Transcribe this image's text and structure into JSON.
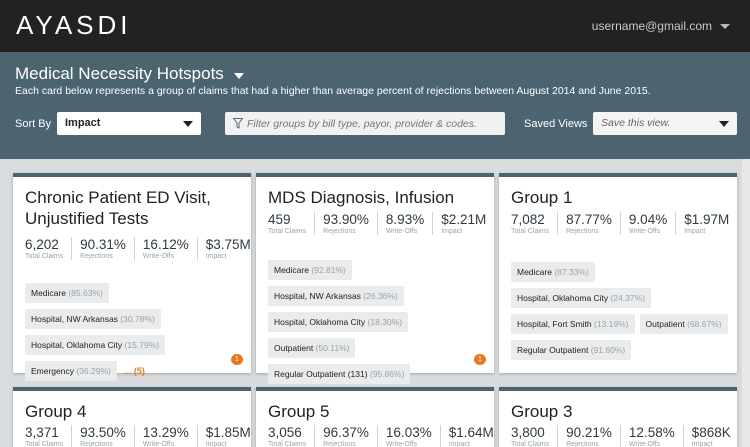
{
  "app": {
    "logo": "AYASDI",
    "user": "username@gmail.com"
  },
  "header": {
    "title": "Medical Necessity Hotspots",
    "subtitle": "Each card below represents a group of claims that had a higher than average percent of rejections between August 2014 and June 2015.",
    "sort_label": "Sort By",
    "sort_value": "Impact",
    "filter_placeholder": "Filter groups by bill type, payor, provider & codes.",
    "saved_label": "Saved Views",
    "saved_placeholder": "Save this view."
  },
  "stat_labels": {
    "claims": "Total Claims",
    "rejections": "Rejections",
    "writeoffs": "Write-Offs",
    "impact": "Impact"
  },
  "cards": [
    {
      "title": "Chronic Patient ED Visit, Unjustified Tests",
      "claims": "6,202",
      "rejections": "90.31%",
      "writeoffs": "16.12%",
      "impact": "$3.75M",
      "tags": [
        {
          "name": "Medicare",
          "pct": "(85.63%)"
        },
        {
          "name": "Hospital, NW Arkansas",
          "pct": "(30.78%)"
        },
        {
          "name": "Hospital, Oklahoma City",
          "pct": "(15.79%)"
        },
        {
          "name": "Emergency",
          "pct": "(36.29%)"
        }
      ],
      "more": "... (5)",
      "comments": "1"
    },
    {
      "title": "MDS Diagnosis, Infusion",
      "claims": "459",
      "rejections": "93.90%",
      "writeoffs": "8.93%",
      "impact": "$2.21M",
      "tags": [
        {
          "name": "Medicare",
          "pct": "(92.81%)"
        },
        {
          "name": "Hospital, NW Arkansas",
          "pct": "(26.36%)"
        },
        {
          "name": "Hospital, Oklahoma City",
          "pct": "(18.30%)"
        },
        {
          "name": "Outpatient",
          "pct": "(50.11%)"
        },
        {
          "name": "Regular Outpatient (131)",
          "pct": "(95.86%)"
        }
      ],
      "comments": "1"
    },
    {
      "title": "Group 1",
      "claims": "7,082",
      "rejections": "87.77%",
      "writeoffs": "9.04%",
      "impact": "$1.97M",
      "tags": [
        {
          "name": "Medicare",
          "pct": "(87.33%)"
        },
        {
          "name": "Hospital, Oklahoma City",
          "pct": "(24.37%)"
        },
        {
          "name": "Hospital, Fort Smith",
          "pct": "(13.19%)"
        },
        {
          "name": "Outpatient",
          "pct": "(68.67%)"
        },
        {
          "name": "Regular Outpatient",
          "pct": "(91.60%)"
        }
      ]
    },
    {
      "title": "Group 4",
      "claims": "3,371",
      "rejections": "93.50%",
      "writeoffs": "13.29%",
      "impact": "$1.85M"
    },
    {
      "title": "Group 5",
      "claims": "3,056",
      "rejections": "96.37%",
      "writeoffs": "16.03%",
      "impact": "$1.64M"
    },
    {
      "title": "Group 3",
      "claims": "3,800",
      "rejections": "90.21%",
      "writeoffs": "12.58%",
      "impact": "$868K"
    }
  ]
}
